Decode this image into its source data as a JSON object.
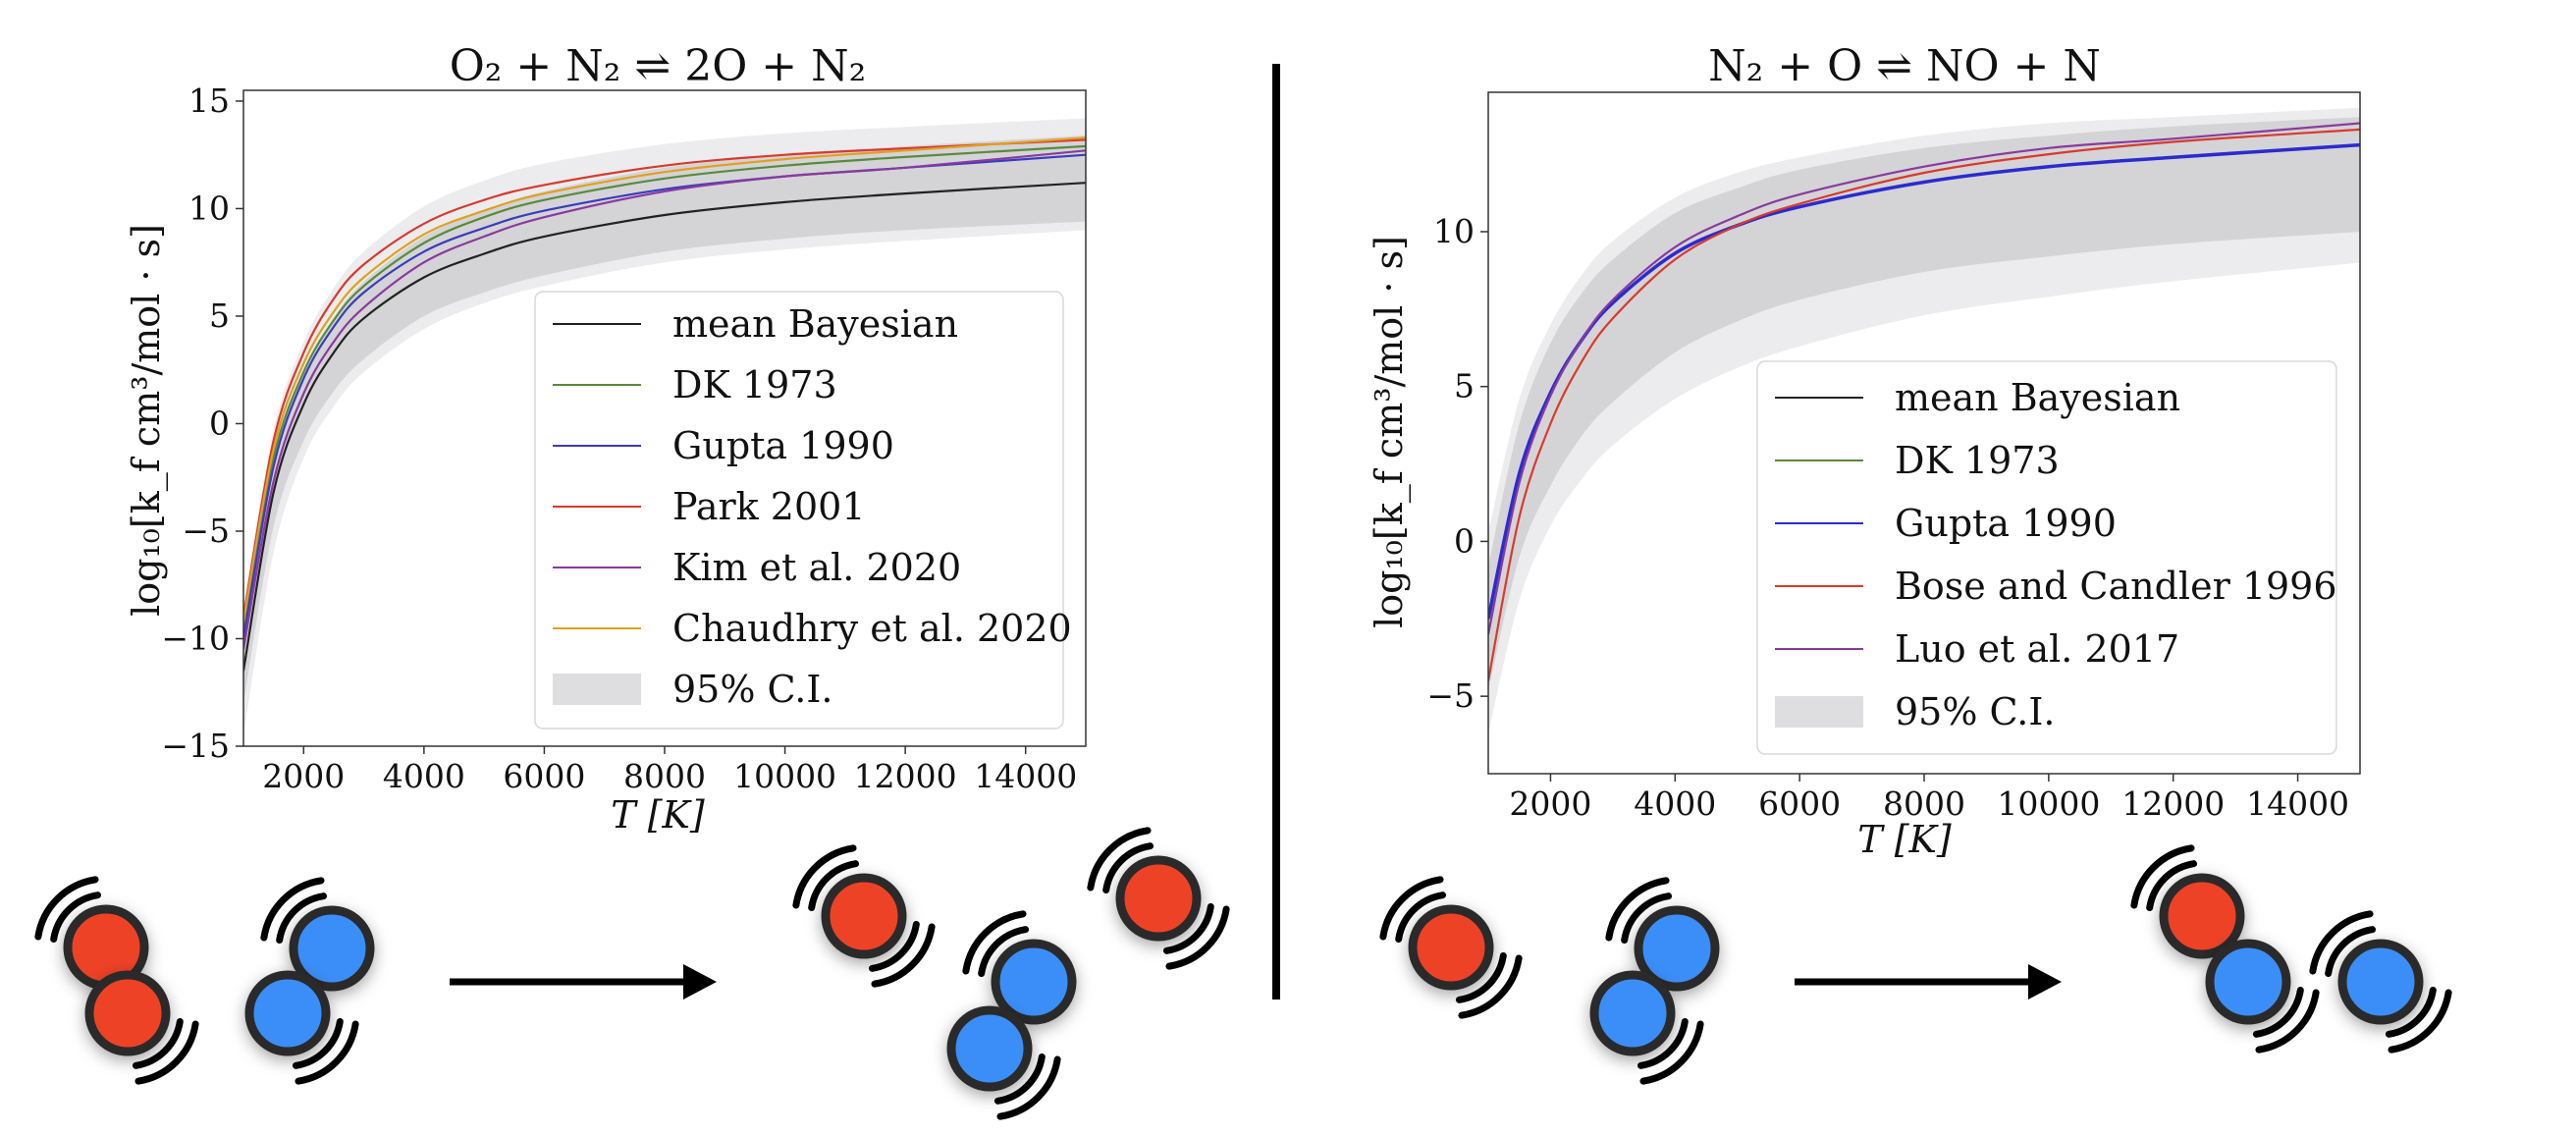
{
  "chart_data": [
    {
      "type": "line",
      "title": "O₂ + N₂ ⇌ 2O + N₂",
      "xlabel": "T [K]",
      "ylabel": "log₁₀[k_f cm³/mol · s]",
      "xlim": [
        1000,
        15000
      ],
      "ylim": [
        -15,
        15.5
      ],
      "xticks": [
        2000,
        4000,
        6000,
        8000,
        10000,
        12000,
        14000
      ],
      "yticks": [
        -15,
        -10,
        -5,
        0,
        5,
        10,
        15
      ],
      "grid": false,
      "legend_position": "lower-right",
      "x": [
        1000,
        1500,
        2000,
        2500,
        3000,
        4000,
        5000,
        6000,
        8000,
        10000,
        12000,
        15000
      ],
      "series": [
        {
          "name": "mean Bayesian",
          "color": "#222222",
          "values": [
            -11.5,
            -3.2,
            0.9,
            3.3,
            4.9,
            6.8,
            7.9,
            8.7,
            9.7,
            10.3,
            10.7,
            11.2
          ]
        },
        {
          "name": "DK 1973",
          "color": "#5a8a3c",
          "values": [
            -9.5,
            -1.6,
            2.4,
            4.8,
            6.4,
            8.4,
            9.6,
            10.4,
            11.4,
            12.0,
            12.4,
            12.9
          ]
        },
        {
          "name": "Gupta 1990",
          "color": "#3b3bbf",
          "values": [
            -10.0,
            -2.0,
            2.1,
            4.5,
            6.1,
            8.0,
            9.1,
            9.9,
            10.9,
            11.5,
            11.9,
            12.5
          ]
        },
        {
          "name": "Park 2001",
          "color": "#d93a2b",
          "values": [
            -9.0,
            -0.8,
            3.3,
            5.8,
            7.4,
            9.3,
            10.4,
            11.1,
            12.0,
            12.5,
            12.8,
            13.2
          ]
        },
        {
          "name": "Kim et al. 2020",
          "color": "#8a3a9e",
          "values": [
            -10.5,
            -2.7,
            1.4,
            3.8,
            5.4,
            7.5,
            8.7,
            9.6,
            10.8,
            11.5,
            11.9,
            12.7
          ]
        },
        {
          "name": "Chaudhry et al. 2020",
          "color": "#e0a020",
          "values": [
            -9.2,
            -1.2,
            2.8,
            5.2,
            6.8,
            8.8,
            9.9,
            10.7,
            11.7,
            12.3,
            12.7,
            13.3
          ]
        }
      ],
      "ci": {
        "name": "95% C.I.",
        "color": "#e0e0e2",
        "inner": {
          "lower": [
            -13.0,
            -4.8,
            -0.8,
            1.5,
            3.0,
            5.0,
            6.1,
            6.9,
            8.0,
            8.6,
            9.0,
            9.4
          ],
          "upper": [
            -10.2,
            -1.8,
            2.4,
            4.9,
            6.6,
            8.7,
            9.9,
            10.8,
            11.9,
            12.5,
            12.9,
            13.4
          ]
        },
        "outer": {
          "lower": [
            -14.5,
            -6.0,
            -1.6,
            0.8,
            2.4,
            4.4,
            5.6,
            6.4,
            7.5,
            8.1,
            8.5,
            9.0
          ],
          "upper": [
            -8.6,
            -0.3,
            3.8,
            6.3,
            8.0,
            10.1,
            11.3,
            12.1,
            13.0,
            13.5,
            13.8,
            14.2
          ]
        }
      }
    },
    {
      "type": "line",
      "title": "N₂ + O ⇌ NO + N",
      "xlabel": "T [K]",
      "ylabel": "log₁₀[k_f cm³/mol · s]",
      "xlim": [
        1000,
        15000
      ],
      "ylim": [
        -7.5,
        14.5
      ],
      "xticks": [
        2000,
        4000,
        6000,
        8000,
        10000,
        12000,
        14000
      ],
      "yticks": [
        -5,
        0,
        5,
        10
      ],
      "grid": false,
      "legend_position": "lower-right",
      "x": [
        1000,
        1500,
        2000,
        2500,
        3000,
        4000,
        5000,
        6000,
        8000,
        10000,
        12000,
        15000
      ],
      "series": [
        {
          "name": "mean Bayesian",
          "color": "#222222",
          "values": [
            -2.5,
            2.2,
            4.8,
            6.5,
            7.7,
            9.3,
            10.2,
            10.8,
            11.6,
            12.1,
            12.4,
            12.8
          ]
        },
        {
          "name": "DK 1973",
          "color": "#5a8a3c",
          "values": [
            -2.5,
            2.2,
            4.8,
            6.5,
            7.7,
            9.3,
            10.2,
            10.8,
            11.6,
            12.1,
            12.4,
            12.8
          ]
        },
        {
          "name": "Gupta 1990",
          "color": "#2b2bcf",
          "values": [
            -2.5,
            2.2,
            4.8,
            6.5,
            7.7,
            9.3,
            10.2,
            10.8,
            11.6,
            12.1,
            12.4,
            12.8
          ]
        },
        {
          "name": "Bose and Candler 1996",
          "color": "#d93a2b",
          "values": [
            -4.5,
            0.8,
            3.8,
            5.8,
            7.2,
            9.1,
            10.2,
            10.9,
            11.9,
            12.5,
            12.9,
            13.3
          ]
        },
        {
          "name": "Luo et al. 2017",
          "color": "#8a3a9e",
          "values": [
            -3.0,
            1.9,
            4.7,
            6.5,
            7.8,
            9.5,
            10.5,
            11.2,
            12.1,
            12.7,
            13.0,
            13.5
          ]
        }
      ],
      "ci": {
        "name": "95% C.I.",
        "color": "#e0e0e2",
        "inner": {
          "lower": [
            -4.8,
            -0.5,
            1.8,
            3.4,
            4.5,
            6.1,
            7.1,
            7.8,
            8.7,
            9.2,
            9.6,
            10.0
          ],
          "upper": [
            -0.8,
            3.8,
            6.4,
            8.0,
            9.1,
            10.6,
            11.4,
            12.0,
            12.7,
            13.1,
            13.4,
            13.7
          ]
        },
        "outer": {
          "lower": [
            -6.2,
            -1.9,
            0.5,
            2.0,
            3.1,
            4.6,
            5.6,
            6.3,
            7.3,
            7.9,
            8.4,
            9.0
          ],
          "upper": [
            0.3,
            4.6,
            7.0,
            8.6,
            9.7,
            11.1,
            11.9,
            12.4,
            13.1,
            13.5,
            13.7,
            14.0
          ]
        }
      }
    }
  ],
  "molecules": {
    "colors": {
      "oxygen": "#ee4326",
      "nitrogen": "#3a8ef7",
      "outline": "#2a2a2a",
      "arrow": "#000000"
    },
    "panel1": {
      "reactants": [
        "O2",
        "N2"
      ],
      "products": [
        "O",
        "N2",
        "O"
      ]
    },
    "panel2": {
      "reactants": [
        "O",
        "N2"
      ],
      "products": [
        "NO",
        "N"
      ]
    }
  }
}
